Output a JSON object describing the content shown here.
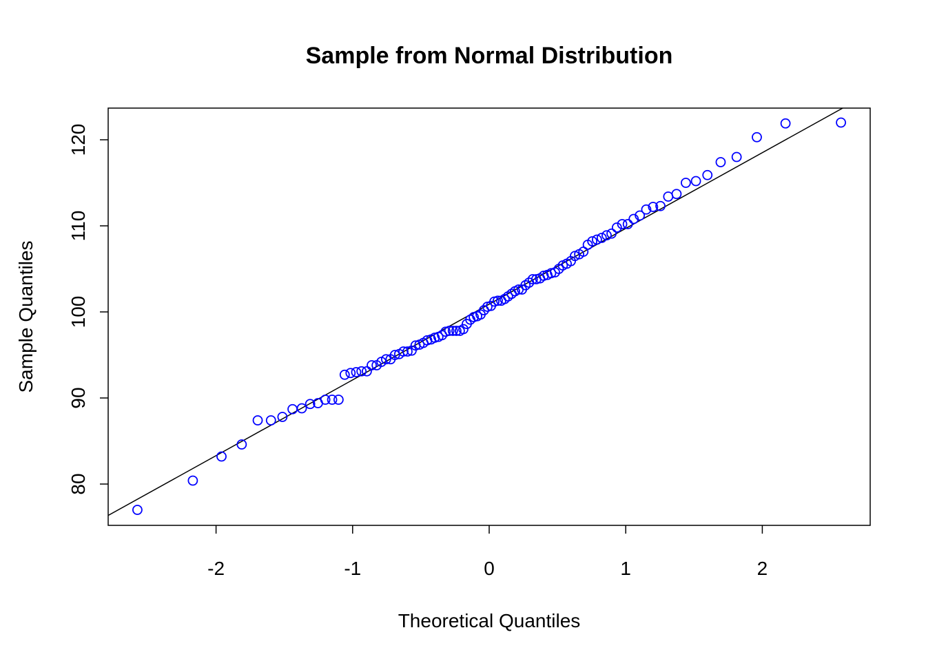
{
  "chart_data": {
    "type": "qq",
    "title": "Sample from Normal Distribution",
    "xlabel": "Theoretical Quantiles",
    "ylabel": "Sample Quantiles",
    "color": "#0000ff",
    "line_color": "#000000",
    "xlim": [
      -2.79,
      2.79
    ],
    "ylim": [
      75.2,
      123.68
    ],
    "xticks": [
      -2,
      -1,
      0,
      1,
      2
    ],
    "yticks": [
      80,
      90,
      100,
      110,
      120
    ],
    "reference_line": {
      "intercept": 100.9,
      "slope": 8.8
    },
    "x": [
      -2.576,
      -2.17,
      -1.96,
      -1.812,
      -1.695,
      -1.598,
      -1.514,
      -1.44,
      -1.372,
      -1.311,
      -1.254,
      -1.2,
      -1.15,
      -1.103,
      -1.058,
      -1.015,
      -0.974,
      -0.935,
      -0.896,
      -0.86,
      -0.824,
      -0.789,
      -0.755,
      -0.722,
      -0.69,
      -0.659,
      -0.628,
      -0.598,
      -0.568,
      -0.539,
      -0.51,
      -0.482,
      -0.454,
      -0.426,
      -0.399,
      -0.372,
      -0.345,
      -0.319,
      -0.292,
      -0.266,
      -0.24,
      -0.215,
      -0.189,
      -0.164,
      -0.138,
      -0.113,
      -0.088,
      -0.063,
      -0.038,
      -0.013,
      0.013,
      0.038,
      0.063,
      0.088,
      0.113,
      0.138,
      0.164,
      0.189,
      0.215,
      0.24,
      0.266,
      0.292,
      0.319,
      0.345,
      0.372,
      0.399,
      0.426,
      0.454,
      0.482,
      0.51,
      0.539,
      0.568,
      0.598,
      0.628,
      0.659,
      0.69,
      0.722,
      0.755,
      0.789,
      0.824,
      0.86,
      0.896,
      0.935,
      0.974,
      1.015,
      1.058,
      1.103,
      1.15,
      1.2,
      1.254,
      1.311,
      1.372,
      1.44,
      1.514,
      1.598,
      1.695,
      1.812,
      1.96,
      2.17,
      2.576
    ],
    "values": [
      77.0,
      80.4,
      83.2,
      84.6,
      87.4,
      87.4,
      87.8,
      88.7,
      88.8,
      89.3,
      89.4,
      89.8,
      89.8,
      89.8,
      92.7,
      92.9,
      93.0,
      93.1,
      93.1,
      93.8,
      93.8,
      94.2,
      94.5,
      94.5,
      95.0,
      95.1,
      95.4,
      95.4,
      95.5,
      96.1,
      96.2,
      96.4,
      96.7,
      96.8,
      97.0,
      97.1,
      97.3,
      97.7,
      97.8,
      97.8,
      97.8,
      97.8,
      98.0,
      98.6,
      99.1,
      99.4,
      99.5,
      99.7,
      100.2,
      100.6,
      100.7,
      101.2,
      101.3,
      101.3,
      101.5,
      101.8,
      102.1,
      102.4,
      102.6,
      102.6,
      103.1,
      103.4,
      103.8,
      103.8,
      103.9,
      104.2,
      104.3,
      104.5,
      104.6,
      105.0,
      105.4,
      105.6,
      105.9,
      106.5,
      106.7,
      107.0,
      107.8,
      108.2,
      108.4,
      108.6,
      108.9,
      109.1,
      109.8,
      110.2,
      110.2,
      110.8,
      111.2,
      111.9,
      112.2,
      112.3,
      113.4,
      113.7,
      115.0,
      115.2,
      115.9,
      117.4,
      118.0,
      120.3,
      121.9,
      122.0
    ]
  }
}
